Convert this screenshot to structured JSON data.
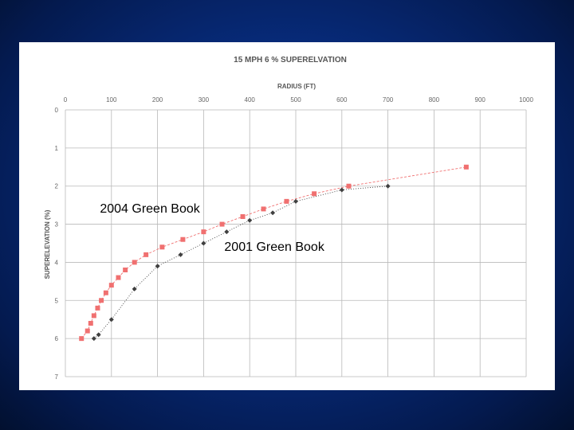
{
  "colors": {
    "background": "#062a78",
    "panel": "#ffffff",
    "grid": "#b9b9b9",
    "series_2004": "#f07070",
    "series_2001": "#404040"
  },
  "chart_data": {
    "type": "line",
    "title": "15 MPH 6 % SUPERELVATION",
    "xlabel": "RADIUS (FT)",
    "ylabel": "SUPERELEVATION (%)",
    "xlim": [
      0,
      1000
    ],
    "ylim": [
      0,
      7
    ],
    "y_inverted": true,
    "x_axis_position": "top",
    "x_ticks": [
      "0",
      "100",
      "200",
      "300",
      "400",
      "500",
      "600",
      "700",
      "800",
      "900",
      "1000"
    ],
    "y_ticks": [
      "0",
      "1",
      "2",
      "3",
      "4",
      "5",
      "6",
      "7"
    ],
    "grid": true,
    "series": [
      {
        "name": "2004 Green Book",
        "marker": "square",
        "line_style": "dashed",
        "points": [
          [
            35,
            6.0
          ],
          [
            48,
            5.8
          ],
          [
            55,
            5.6
          ],
          [
            62,
            5.4
          ],
          [
            70,
            5.2
          ],
          [
            78,
            5.0
          ],
          [
            88,
            4.8
          ],
          [
            100,
            4.6
          ],
          [
            115,
            4.4
          ],
          [
            130,
            4.2
          ],
          [
            150,
            4.0
          ],
          [
            175,
            3.8
          ],
          [
            210,
            3.6
          ],
          [
            255,
            3.4
          ],
          [
            300,
            3.2
          ],
          [
            340,
            3.0
          ],
          [
            385,
            2.8
          ],
          [
            430,
            2.6
          ],
          [
            480,
            2.4
          ],
          [
            540,
            2.2
          ],
          [
            615,
            2.0
          ],
          [
            870,
            1.5
          ]
        ]
      },
      {
        "name": "2001 Green Book",
        "marker": "diamond",
        "line_style": "dotted",
        "points": [
          [
            62,
            6.0
          ],
          [
            72,
            5.9
          ],
          [
            100,
            5.5
          ],
          [
            150,
            4.7
          ],
          [
            200,
            4.1
          ],
          [
            250,
            3.8
          ],
          [
            300,
            3.5
          ],
          [
            350,
            3.2
          ],
          [
            400,
            2.9
          ],
          [
            450,
            2.7
          ],
          [
            500,
            2.4
          ],
          [
            600,
            2.1
          ],
          [
            700,
            2.0
          ]
        ]
      }
    ],
    "annotations": [
      {
        "text": "2004 Green Book",
        "series": 0,
        "at": [
          75,
          2.7
        ]
      },
      {
        "text": "2001 Green Book",
        "series": 1,
        "at": [
          345,
          3.7
        ]
      }
    ]
  }
}
